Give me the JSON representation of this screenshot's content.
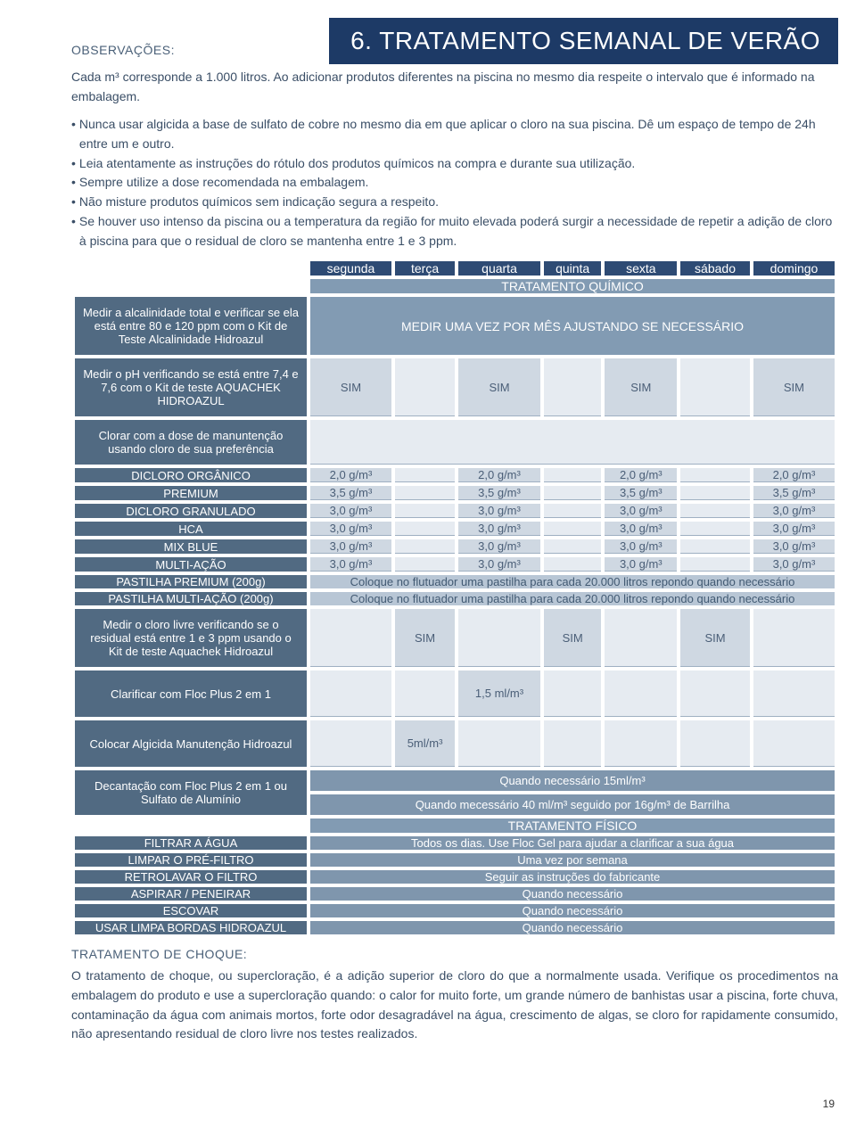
{
  "header": {
    "obs": "OBSERVAÇÕES:",
    "title": "6. TRATAMENTO SEMANAL DE VERÃO"
  },
  "intro": "Cada m³ corresponde a 1.000 litros. Ao adicionar produtos diferentes na piscina no mesmo dia respeite o intervalo que é informado na embalagem.",
  "bullets": [
    "Nunca usar algicida a base de sulfato de cobre no mesmo dia em que aplicar o cloro na sua piscina. Dê um espaço de tempo de 24h entre um e outro.",
    "Leia atentamente as instruções do rótulo dos produtos químicos na compra e durante sua utilização.",
    "Sempre utilize a dose recomendada na embalagem.",
    "Não misture produtos químicos sem indicação segura a respeito.",
    "Se houver uso intenso da piscina ou a temperatura da região for muito elevada poderá surgir a necessidade de repetir a adição de cloro à piscina para que o residual de cloro se mantenha entre 1 e 3 ppm."
  ],
  "days": [
    "segunda",
    "terça",
    "quarta",
    "quinta",
    "sexta",
    "sábado",
    "domingo"
  ],
  "bands": {
    "quimico": "TRATAMENTO QUÍMICO",
    "fisico": "TRATAMENTO FÍSICO"
  },
  "rows": {
    "alcalinidade": {
      "label": "Medir a alcalinidade total e verificar se ela está entre 80 e 120 ppm com o Kit de Teste Alcalinidade Hidroazul",
      "msg": "MEDIR UMA VEZ POR MÊS AJUSTANDO SE NECESSÁRIO"
    },
    "ph": {
      "label": "Medir o pH verificando se está entre 7,4 e 7,6 com o Kit de teste AQUACHEK HIDROAZUL",
      "vals": [
        "SIM",
        "",
        "SIM",
        "",
        "SIM",
        "",
        "SIM"
      ]
    },
    "clorar": {
      "label": "Clorar com a dose de manuntenção usando cloro de sua preferência"
    },
    "dicloro_org": {
      "label": "DICLORO ORGÂNICO",
      "vals": [
        "2,0 g/m³",
        "",
        "2,0 g/m³",
        "",
        "2,0 g/m³",
        "",
        "2,0 g/m³"
      ]
    },
    "premium": {
      "label": "PREMIUM",
      "vals": [
        "3,5 g/m³",
        "",
        "3,5 g/m³",
        "",
        "3,5 g/m³",
        "",
        "3,5 g/m³"
      ]
    },
    "dicloro_gran": {
      "label": "DICLORO GRANULADO",
      "vals": [
        "3,0 g/m³",
        "",
        "3,0 g/m³",
        "",
        "3,0 g/m³",
        "",
        "3,0 g/m³"
      ]
    },
    "hca": {
      "label": "HCA",
      "vals": [
        "3,0 g/m³",
        "",
        "3,0 g/m³",
        "",
        "3,0 g/m³",
        "",
        "3,0 g/m³"
      ]
    },
    "mixblue": {
      "label": "MIX BLUE",
      "vals": [
        "3,0 g/m³",
        "",
        "3,0 g/m³",
        "",
        "3,0 g/m³",
        "",
        "3,0 g/m³"
      ]
    },
    "multi": {
      "label": "MULTI-AÇÃO",
      "vals": [
        "3,0 g/m³",
        "",
        "3,0 g/m³",
        "",
        "3,0 g/m³",
        "",
        "3,0 g/m³"
      ]
    },
    "pastilha_prem": {
      "label": "PASTILHA PREMIUM (200g)",
      "msg": "Coloque no flutuador uma pastilha para cada 20.000 litros repondo quando necessário"
    },
    "pastilha_multi": {
      "label": "PASTILHA MULTI-AÇÃO (200g)",
      "msg": "Coloque no flutuador uma pastilha para cada 20.000 litros repondo quando necessário"
    },
    "clorolivre": {
      "label": "Medir o cloro livre verificando se o residual está entre 1 e 3 ppm usando o Kit de teste Aquachek Hidroazul",
      "vals": [
        "",
        "SIM",
        "",
        "SIM",
        "",
        "SIM",
        ""
      ]
    },
    "clarificar": {
      "label": "Clarificar com Floc Plus 2 em 1",
      "vals": [
        "",
        "",
        "1,5 ml/m³",
        "",
        "",
        "",
        ""
      ]
    },
    "algicida": {
      "label": "Colocar Algicida Manutenção Hidroazul",
      "vals": [
        "",
        "5ml/m³",
        "",
        "",
        "",
        "",
        ""
      ]
    },
    "decant": {
      "label": "Decantação com Floc Plus 2 em 1 ou Sulfato de Alumínio",
      "msg1": "Quando necessário 15ml/m³",
      "msg2": "Quando mecessário 40 ml/m³ seguido por 16g/m³ de Barrilha"
    },
    "filtrar": {
      "label": "FILTRAR A ÁGUA",
      "msg": "Todos os dias. Use Floc Gel para ajudar a clarificar a sua água"
    },
    "limpar": {
      "label": "LIMPAR O PRÉ-FILTRO",
      "msg": "Uma vez por semana"
    },
    "retro": {
      "label": "RETROLAVAR O FILTRO",
      "msg": "Seguir as instruções do fabricante"
    },
    "aspirar": {
      "label": "ASPIRAR / PENEIRAR",
      "msg": "Quando necessário"
    },
    "escovar": {
      "label": "ESCOVAR",
      "msg": "Quando necessário"
    },
    "bordas": {
      "label": "USAR LIMPA BORDAS HIDROAZUL",
      "msg": "Quando necessário"
    }
  },
  "choque": {
    "title": "TRATAMENTO DE CHOQUE:",
    "body": "O tratamento de choque, ou supercloração, é a adição superior de cloro do que a normalmente usada. Verifique os procedimentos na embalagem do produto e use a supercloração quando: o calor for muito forte, um grande número de banhistas usar a piscina, forte chuva, contaminação da água com animais mortos, forte odor desagradável na água, crescimento de algas, se cloro for rapidamente consumido, não apresentando residual de cloro livre nos testes realizados."
  },
  "pagenum": "19"
}
